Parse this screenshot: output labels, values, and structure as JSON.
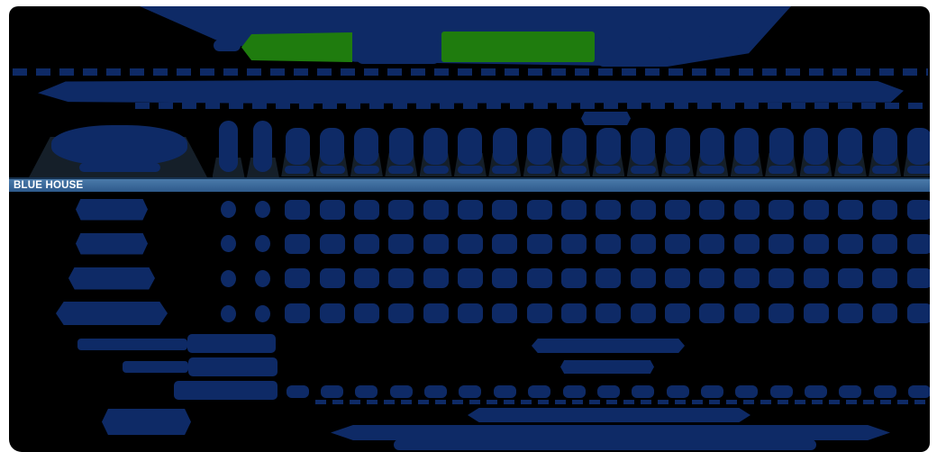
{
  "colors": {
    "page_background": "#ffffff",
    "panel_background": "#000000",
    "text_blob_navy": "#0e2a66",
    "highlight_green": "#1f7c0e",
    "header_shadow": "#151f29",
    "section_bar_gradient_top": "#4a7aa9",
    "section_bar_gradient_bottom": "#2e5a8c",
    "section_bar_border": "#16314f",
    "section_bar_text": "#ffffff"
  },
  "banner": {
    "nav_items": [
      {
        "id": "nav-blob-1",
        "highlight": false
      },
      {
        "id": "nav-blob-2",
        "highlight": true
      },
      {
        "id": "nav-blob-3",
        "highlight": false
      },
      {
        "id": "nav-blob-4",
        "highlight": true
      },
      {
        "id": "nav-blob-5",
        "highlight": false
      },
      {
        "id": "nav-blob-6",
        "highlight": false
      }
    ]
  },
  "section_header": {
    "label": "BLUE HOUSE"
  },
  "results_grid": {
    "column_count": 21,
    "tall_header_columns": 2,
    "house_row_count": 4,
    "summary_dot_columns": 19
  }
}
